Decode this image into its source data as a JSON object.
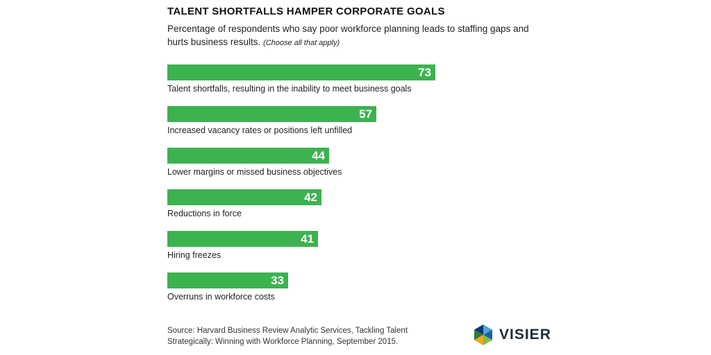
{
  "title": "TALENT SHORTFALLS HAMPER CORPORATE GOALS",
  "subtitle": "Percentage of respondents who say poor workforce planning leads to staffing gaps and hurts business results.",
  "subtitle_note": "(Choose all that apply)",
  "chart_data": {
    "type": "bar",
    "orientation": "horizontal",
    "categories": [
      "Talent shortfalls, resulting in the inability to meet business goals",
      "Increased vacancy rates or positions left unfilled",
      "Lower margins or missed business objectives",
      "Reductions in force",
      "Hiring freezes",
      "Overruns in workforce costs"
    ],
    "values": [
      73,
      57,
      44,
      42,
      41,
      33
    ],
    "value_labels": [
      "73",
      "57",
      "44",
      "42",
      "41",
      "33"
    ],
    "bar_color": "#3cb251",
    "grid": false
  },
  "source": {
    "line1": "Source: Harvard Business Review Analytic Services, Tackling Talent",
    "line2": "Strategically: Winning with Workforce Planning, September 2015."
  },
  "logo": {
    "text": "VISIER",
    "colors": [
      "#4fa3d9",
      "#1f5fa8",
      "#7cc142",
      "#f2a81d",
      "#2e7d3a",
      "#0d3a6e"
    ]
  }
}
